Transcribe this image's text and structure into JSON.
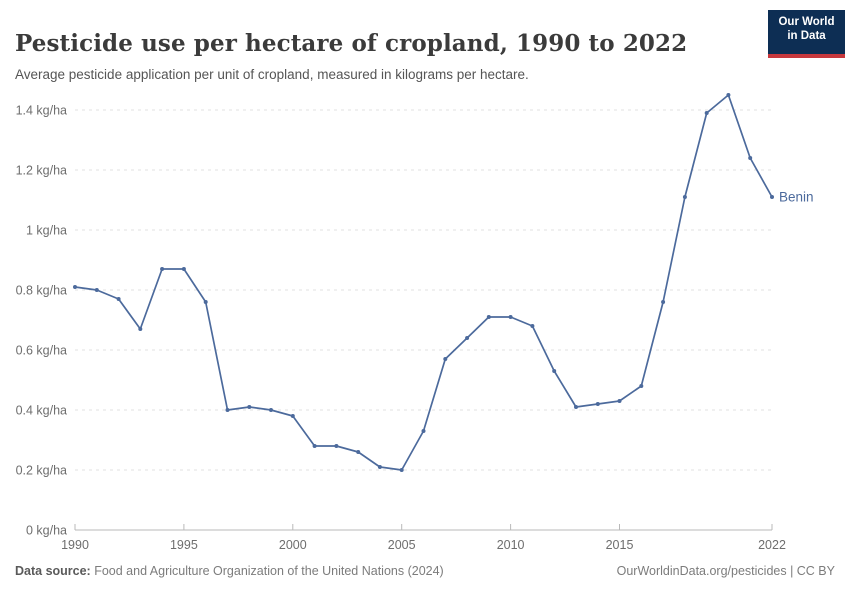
{
  "header": {
    "title": "Pesticide use per hectare of cropland, 1990 to 2022",
    "subtitle": "Average pesticide application per unit of cropland, measured in kilograms per hectare.",
    "logo_line1": "Our World",
    "logo_line2": "in Data"
  },
  "colors": {
    "series_blue": "#4C6A9C",
    "logo_navy": "#0d2e54",
    "logo_red": "#c7383d",
    "gridline": "#e0e0e0",
    "axis": "#b9b9b9",
    "tick_text": "#6e6e6e"
  },
  "chart_data": {
    "type": "line",
    "title": "Pesticide use per hectare of cropland, 1990 to 2022",
    "xlabel": "",
    "ylabel": "kg/ha",
    "xlim": [
      1990,
      2022
    ],
    "ylim": [
      0,
      1.4
    ],
    "grid": "horizontal-dashed",
    "legend_position": "end-of-line-label",
    "x_ticks": [
      1990,
      1995,
      2000,
      2005,
      2010,
      2015,
      2022
    ],
    "y_ticks": [
      {
        "value": 0,
        "label": "0 kg/ha"
      },
      {
        "value": 0.2,
        "label": "0.2 kg/ha"
      },
      {
        "value": 0.4,
        "label": "0.4 kg/ha"
      },
      {
        "value": 0.6,
        "label": "0.6 kg/ha"
      },
      {
        "value": 0.8,
        "label": "0.8 kg/ha"
      },
      {
        "value": 1,
        "label": "1 kg/ha"
      },
      {
        "value": 1.2,
        "label": "1.2 kg/ha"
      },
      {
        "value": 1.4,
        "label": "1.4 kg/ha"
      }
    ],
    "series": [
      {
        "name": "Benin",
        "color": "#4C6A9C",
        "x": [
          1990,
          1991,
          1992,
          1993,
          1994,
          1995,
          1996,
          1997,
          1998,
          1999,
          2000,
          2001,
          2002,
          2003,
          2004,
          2005,
          2006,
          2007,
          2008,
          2009,
          2010,
          2011,
          2012,
          2013,
          2014,
          2015,
          2016,
          2017,
          2018,
          2019,
          2020,
          2021,
          2022
        ],
        "values": [
          0.81,
          0.8,
          0.77,
          0.67,
          0.87,
          0.87,
          0.76,
          0.4,
          0.41,
          0.4,
          0.38,
          0.28,
          0.28,
          0.26,
          0.21,
          0.2,
          0.33,
          0.57,
          0.64,
          0.71,
          0.71,
          0.68,
          0.53,
          0.41,
          0.42,
          0.43,
          0.48,
          0.76,
          1.11,
          1.39,
          1.45,
          1.24,
          1.11
        ]
      }
    ]
  },
  "footer": {
    "source_label": "Data source:",
    "source_text": " Food and Agriculture Organization of the United Nations (2024)",
    "credit": "OurWorldinData.org/pesticides | CC BY"
  }
}
